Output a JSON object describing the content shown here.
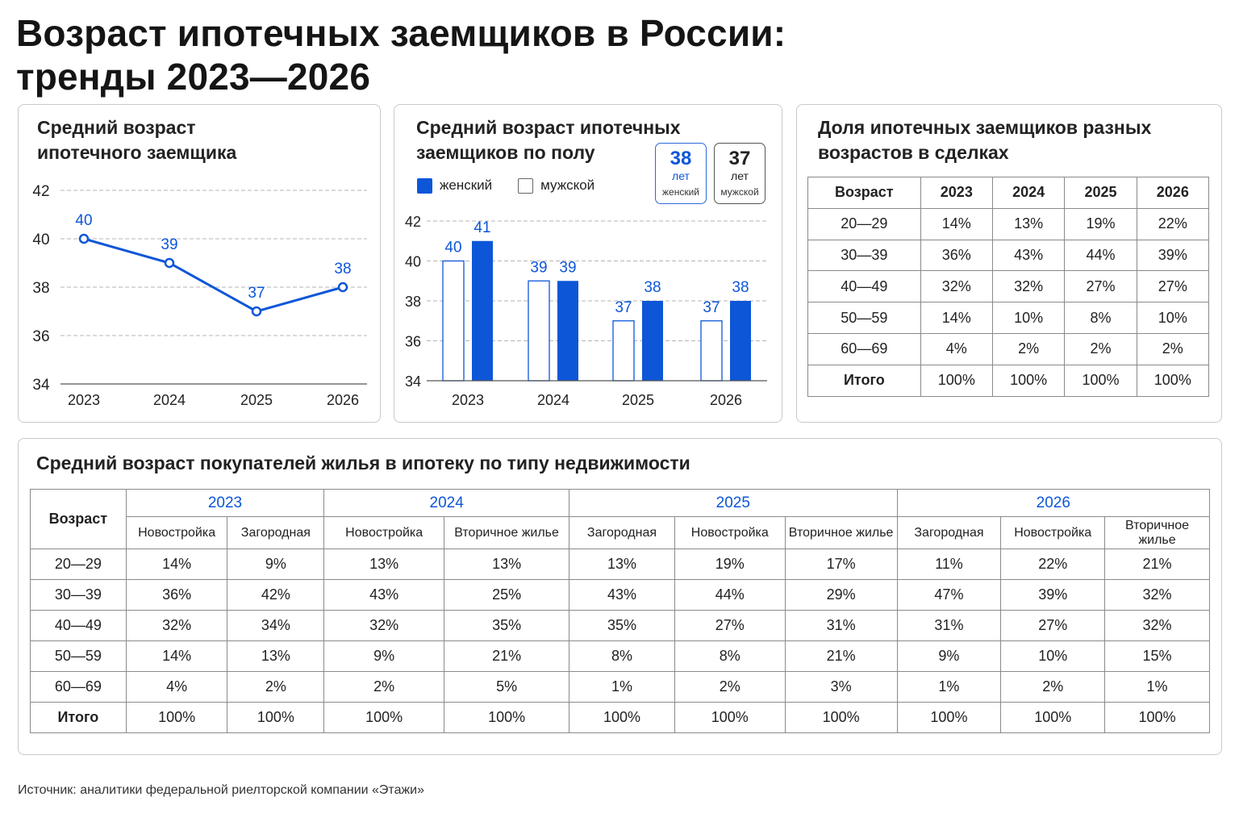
{
  "title_line1": "Возраст ипотечных заемщиков в России:",
  "title_line2": "тренды 2023—2026",
  "colors": {
    "accent": "#0d56d8",
    "border": "#c9c9c9"
  },
  "panel1": {
    "title_line1": "Средний возраст",
    "title_line2": "ипотечного заемщика"
  },
  "panel2": {
    "title_line1": "Средний возраст ипотечных",
    "title_line2": "заемщиков по полу",
    "legend_female": "женский",
    "legend_male": "мужской",
    "badge_female": {
      "value": "38",
      "unit": "лет",
      "label": "женский"
    },
    "badge_male": {
      "value": "37",
      "unit": "лет",
      "label": "мужской"
    }
  },
  "panel3": {
    "title_line1": "Доля ипотечных заемщиков разных",
    "title_line2": "возрастов в сделках",
    "headers": [
      "Возраст",
      "2023",
      "2024",
      "2025",
      "2026"
    ],
    "rows": [
      [
        "20—29",
        "14%",
        "13%",
        "19%",
        "22%"
      ],
      [
        "30—39",
        "36%",
        "43%",
        "44%",
        "39%"
      ],
      [
        "40—49",
        "32%",
        "32%",
        "27%",
        "27%"
      ],
      [
        "50—59",
        "14%",
        "10%",
        "8%",
        "10%"
      ],
      [
        "60—69",
        "4%",
        "2%",
        "2%",
        "2%"
      ],
      [
        "Итого",
        "100%",
        "100%",
        "100%",
        "100%"
      ]
    ]
  },
  "panel4": {
    "title": "Средний возраст покупателей жилья в ипотеку по типу недвижимости",
    "age_header": "Возраст",
    "years": [
      {
        "year": "2023",
        "span": 2
      },
      {
        "year": "2024",
        "span": 2
      },
      {
        "year": "2025",
        "span": 3
      },
      {
        "year": "2026",
        "span": 3
      }
    ],
    "subheaders": [
      "Новостройка",
      "Загородная",
      "Новостройка",
      "Вторичное жилье",
      "Загородная",
      "Новостройка",
      "Вторичное жилье",
      "Загородная",
      "Новостройка",
      "Вторичное жилье"
    ],
    "rows": [
      [
        "20—29",
        "14%",
        "9%",
        "13%",
        "13%",
        "13%",
        "19%",
        "17%",
        "11%",
        "22%",
        "21%"
      ],
      [
        "30—39",
        "36%",
        "42%",
        "43%",
        "25%",
        "43%",
        "44%",
        "29%",
        "47%",
        "39%",
        "32%"
      ],
      [
        "40—49",
        "32%",
        "34%",
        "32%",
        "35%",
        "35%",
        "27%",
        "31%",
        "31%",
        "27%",
        "32%"
      ],
      [
        "50—59",
        "14%",
        "13%",
        "9%",
        "21%",
        "8%",
        "8%",
        "21%",
        "9%",
        "10%",
        "15%"
      ],
      [
        "60—69",
        "4%",
        "2%",
        "2%",
        "5%",
        "1%",
        "2%",
        "3%",
        "1%",
        "2%",
        "1%"
      ],
      [
        "Итого",
        "100%",
        "100%",
        "100%",
        "100%",
        "100%",
        "100%",
        "100%",
        "100%",
        "100%",
        "100%"
      ]
    ]
  },
  "source": "Источник: аналитики федеральной риелторской компании «Этажи»",
  "chart_data": [
    {
      "type": "line",
      "x": [
        "2023",
        "2024",
        "2025",
        "2026"
      ],
      "values": [
        40,
        39,
        37,
        38
      ],
      "data_labels": [
        "40",
        "39",
        "37",
        "38"
      ],
      "yticks": [
        "34",
        "36",
        "38",
        "40",
        "42"
      ],
      "ylim": [
        34,
        42
      ],
      "grid": true
    },
    {
      "type": "bar",
      "categories": [
        "2023",
        "2024",
        "2025",
        "2026"
      ],
      "series": [
        {
          "name": "мужской",
          "values": [
            40,
            39,
            37,
            37
          ],
          "labels": [
            "40",
            "39",
            "37",
            "37"
          ],
          "color": "#ffffff"
        },
        {
          "name": "женский",
          "values": [
            41,
            39,
            38,
            38
          ],
          "labels": [
            "41",
            "39",
            "38",
            "38"
          ],
          "color": "#0d56d8"
        }
      ],
      "yticks": [
        "34",
        "36",
        "38",
        "40",
        "42"
      ],
      "ylim": [
        34,
        42
      ],
      "grid": true,
      "legend": "top-left"
    }
  ]
}
